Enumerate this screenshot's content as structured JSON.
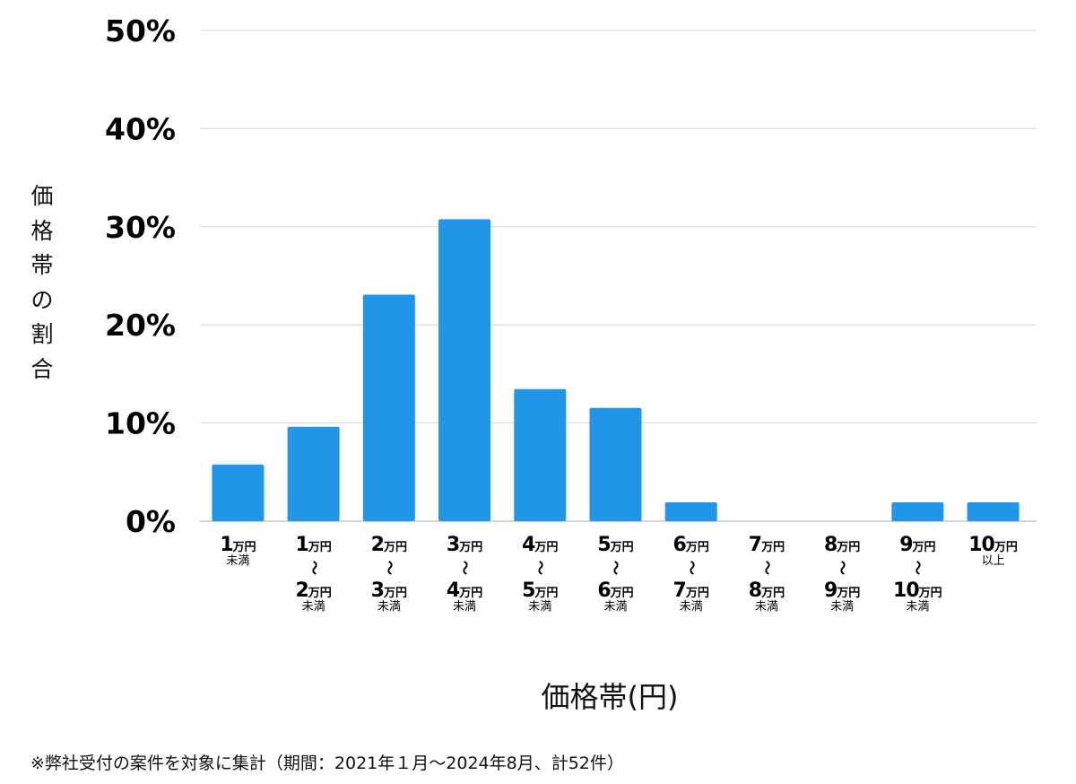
{
  "chart_data": {
    "type": "bar",
    "ylabel": "価格帯の割合",
    "xlabel": "価格帯(円)",
    "ylim": [
      0,
      50
    ],
    "yticks": [
      "0%",
      "10%",
      "20%",
      "30%",
      "40%",
      "50%"
    ],
    "ytick_values": [
      0,
      10,
      20,
      30,
      40,
      50
    ],
    "grid": true,
    "bar_color": "#2196e8",
    "unit": "万円",
    "separator": "〜",
    "categories": [
      {
        "top": "1",
        "bottom": null,
        "note": "未満"
      },
      {
        "top": "1",
        "bottom": "2",
        "note": "未満"
      },
      {
        "top": "2",
        "bottom": "3",
        "note": "未満"
      },
      {
        "top": "3",
        "bottom": "4",
        "note": "未満"
      },
      {
        "top": "4",
        "bottom": "5",
        "note": "未満"
      },
      {
        "top": "5",
        "bottom": "6",
        "note": "未満"
      },
      {
        "top": "6",
        "bottom": "7",
        "note": "未満"
      },
      {
        "top": "7",
        "bottom": "8",
        "note": "未満"
      },
      {
        "top": "8",
        "bottom": "9",
        "note": "未満"
      },
      {
        "top": "9",
        "bottom": "10",
        "note": "未満"
      },
      {
        "top": "10",
        "bottom": null,
        "note": "以上"
      }
    ],
    "values": [
      5.77,
      9.62,
      23.08,
      30.77,
      13.46,
      11.54,
      1.92,
      0,
      0,
      1.92,
      1.92
    ]
  },
  "footnote": "※弊社受付の案件を対象に集計（期間：2021年１月～2024年8月、計52件）"
}
